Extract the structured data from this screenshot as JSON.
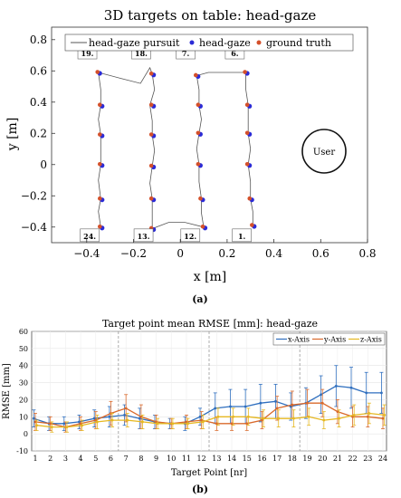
{
  "chart_data": [
    {
      "type": "scatter",
      "title": "3D targets on table: head-gaze",
      "xlabel": "x [m]",
      "ylabel": "y [m]",
      "xlim": [
        -0.55,
        0.8
      ],
      "ylim": [
        -0.5,
        0.88
      ],
      "xticks": [
        -0.4,
        -0.2,
        0,
        0.2,
        0.4,
        0.6,
        0.8
      ],
      "yticks": [
        -0.4,
        -0.2,
        0,
        0.2,
        0.4,
        0.6,
        0.8
      ],
      "xtick_labels": [
        "−0.4",
        "−0.2",
        "0",
        "0.2",
        "0.4",
        "0.6",
        "0.8"
      ],
      "ytick_labels": [
        "−0.4",
        "−0.2",
        "0",
        "0.2",
        "0.4",
        "0.6",
        "0.8"
      ],
      "grid": false,
      "legend_position": "top",
      "legend": [
        {
          "label": "head-gaze pursuit",
          "color": "#555555",
          "marker": "line"
        },
        {
          "label": "head-gaze",
          "color": "#2b2bd6",
          "marker": "dot"
        },
        {
          "label": "ground truth",
          "color": "#d4502a",
          "marker": "dot"
        }
      ],
      "targets": [
        {
          "id": 19,
          "x": -0.35,
          "y": 0.59
        },
        {
          "id": 20,
          "x": -0.34,
          "y": 0.38
        },
        {
          "id": 21,
          "x": -0.34,
          "y": 0.19
        },
        {
          "id": 22,
          "x": -0.34,
          "y": 0.0
        },
        {
          "id": 23,
          "x": -0.34,
          "y": -0.22
        },
        {
          "id": 24,
          "x": -0.34,
          "y": -0.4
        },
        {
          "id": 18,
          "x": -0.12,
          "y": 0.58
        },
        {
          "id": 17,
          "x": -0.12,
          "y": 0.38
        },
        {
          "id": 16,
          "x": -0.12,
          "y": 0.19
        },
        {
          "id": 15,
          "x": -0.12,
          "y": -0.01
        },
        {
          "id": 14,
          "x": -0.12,
          "y": -0.22
        },
        {
          "id": 13,
          "x": -0.12,
          "y": -0.41
        },
        {
          "id": 7,
          "x": 0.07,
          "y": 0.57
        },
        {
          "id": 8,
          "x": 0.08,
          "y": 0.38
        },
        {
          "id": 9,
          "x": 0.08,
          "y": 0.2
        },
        {
          "id": 10,
          "x": 0.08,
          "y": 0.0
        },
        {
          "id": 11,
          "x": 0.09,
          "y": -0.22
        },
        {
          "id": 12,
          "x": 0.1,
          "y": -0.4
        },
        {
          "id": 6,
          "x": 0.28,
          "y": 0.59
        },
        {
          "id": 5,
          "x": 0.29,
          "y": 0.38
        },
        {
          "id": 4,
          "x": 0.29,
          "y": 0.2
        },
        {
          "id": 3,
          "x": 0.29,
          "y": 0.0
        },
        {
          "id": 2,
          "x": 0.3,
          "y": -0.22
        },
        {
          "id": 1,
          "x": 0.31,
          "y": -0.39
        }
      ],
      "labeled_targets": [
        {
          "label": "19.",
          "x": -0.43,
          "y": 0.7
        },
        {
          "label": "18.",
          "x": -0.2,
          "y": 0.7
        },
        {
          "label": "7.",
          "x": -0.01,
          "y": 0.7
        },
        {
          "label": "6.",
          "x": 0.2,
          "y": 0.7
        },
        {
          "label": "24.",
          "x": -0.42,
          "y": -0.47
        },
        {
          "label": "13.",
          "x": -0.19,
          "y": -0.47
        },
        {
          "label": "12.",
          "x": 0.01,
          "y": -0.47
        },
        {
          "label": "1.",
          "x": 0.23,
          "y": -0.47
        }
      ],
      "pursuit_path": [
        [
          -0.34,
          -0.4
        ],
        [
          -0.35,
          -0.3
        ],
        [
          -0.34,
          -0.22
        ],
        [
          -0.35,
          -0.1
        ],
        [
          -0.34,
          0.0
        ],
        [
          -0.34,
          0.1
        ],
        [
          -0.34,
          0.19
        ],
        [
          -0.35,
          0.29
        ],
        [
          -0.34,
          0.38
        ],
        [
          -0.34,
          0.48
        ],
        [
          -0.35,
          0.59
        ],
        [
          -0.25,
          0.55
        ],
        [
          -0.17,
          0.52
        ],
        [
          -0.13,
          0.62
        ],
        [
          -0.12,
          0.58
        ],
        [
          -0.11,
          0.48
        ],
        [
          -0.13,
          0.38
        ],
        [
          -0.12,
          0.28
        ],
        [
          -0.12,
          0.19
        ],
        [
          -0.11,
          0.09
        ],
        [
          -0.12,
          -0.01
        ],
        [
          -0.13,
          -0.12
        ],
        [
          -0.12,
          -0.22
        ],
        [
          -0.12,
          -0.32
        ],
        [
          -0.12,
          -0.41
        ],
        [
          -0.05,
          -0.37
        ],
        [
          0.02,
          -0.37
        ],
        [
          0.1,
          -0.4
        ],
        [
          0.09,
          -0.31
        ],
        [
          0.09,
          -0.22
        ],
        [
          0.08,
          -0.11
        ],
        [
          0.08,
          0.0
        ],
        [
          0.07,
          0.1
        ],
        [
          0.08,
          0.2
        ],
        [
          0.09,
          0.29
        ],
        [
          0.08,
          0.38
        ],
        [
          0.08,
          0.48
        ],
        [
          0.07,
          0.57
        ],
        [
          0.12,
          0.59
        ],
        [
          0.2,
          0.59
        ],
        [
          0.28,
          0.59
        ],
        [
          0.28,
          0.48
        ],
        [
          0.29,
          0.38
        ],
        [
          0.29,
          0.29
        ],
        [
          0.29,
          0.2
        ],
        [
          0.3,
          0.1
        ],
        [
          0.29,
          0.0
        ],
        [
          0.3,
          -0.11
        ],
        [
          0.3,
          -0.22
        ],
        [
          0.31,
          -0.3
        ],
        [
          0.31,
          -0.39
        ]
      ],
      "annotations": [
        {
          "text": "User",
          "x": 0.6,
          "y": 0.1,
          "shape": "circle"
        }
      ]
    },
    {
      "type": "line",
      "title": "Target point mean RMSE [mm]: head-gaze",
      "xlabel": "Target Point [nr]",
      "ylabel": "RMSE [mm]",
      "categories": [
        "1",
        "2",
        "3",
        "4",
        "5",
        "6",
        "7",
        "8",
        "9",
        "10",
        "11",
        "12",
        "13",
        "14",
        "15",
        "16",
        "17",
        "18",
        "19",
        "20",
        "21",
        "22",
        "23",
        "24"
      ],
      "ylim": [
        -10,
        60
      ],
      "yticks": [
        -10,
        0,
        10,
        20,
        30,
        40,
        50,
        60
      ],
      "grid": true,
      "legend_position": "top-right",
      "vlines": [
        6.5,
        12.5,
        18.5
      ],
      "series": [
        {
          "name": "x-Axis",
          "color": "#2f6fbf",
          "values": [
            9,
            6,
            6,
            7,
            9,
            10,
            11,
            9,
            7,
            6,
            6,
            10,
            15,
            16,
            16,
            18,
            19,
            16,
            18,
            23,
            28,
            27,
            24,
            24
          ],
          "errors": [
            5,
            4,
            4,
            4,
            5,
            6,
            6,
            6,
            4,
            3,
            4,
            5,
            9,
            10,
            10,
            11,
            10,
            8,
            9,
            11,
            12,
            12,
            12,
            12
          ]
        },
        {
          "name": "y-Axis",
          "color": "#d9692b",
          "values": [
            7,
            6,
            4,
            6,
            8,
            12,
            15,
            10,
            7,
            6,
            7,
            8,
            6,
            6,
            6,
            8,
            15,
            17,
            18,
            18,
            13,
            10,
            10,
            9
          ],
          "errors": [
            5,
            4,
            3,
            4,
            5,
            7,
            8,
            7,
            4,
            3,
            4,
            5,
            4,
            4,
            4,
            5,
            7,
            8,
            8,
            8,
            7,
            6,
            6,
            6
          ]
        },
        {
          "name": "z-Axis",
          "color": "#e6b821",
          "values": [
            5,
            4,
            4,
            5,
            7,
            8,
            8,
            7,
            6,
            6,
            6,
            7,
            10,
            10,
            10,
            9,
            9,
            9,
            10,
            8,
            9,
            11,
            12,
            11
          ],
          "errors": [
            3,
            3,
            3,
            3,
            4,
            4,
            4,
            4,
            3,
            3,
            3,
            4,
            5,
            5,
            5,
            5,
            5,
            5,
            5,
            5,
            5,
            6,
            6,
            6
          ]
        }
      ]
    }
  ],
  "captions": [
    "(a)",
    "(b)"
  ]
}
